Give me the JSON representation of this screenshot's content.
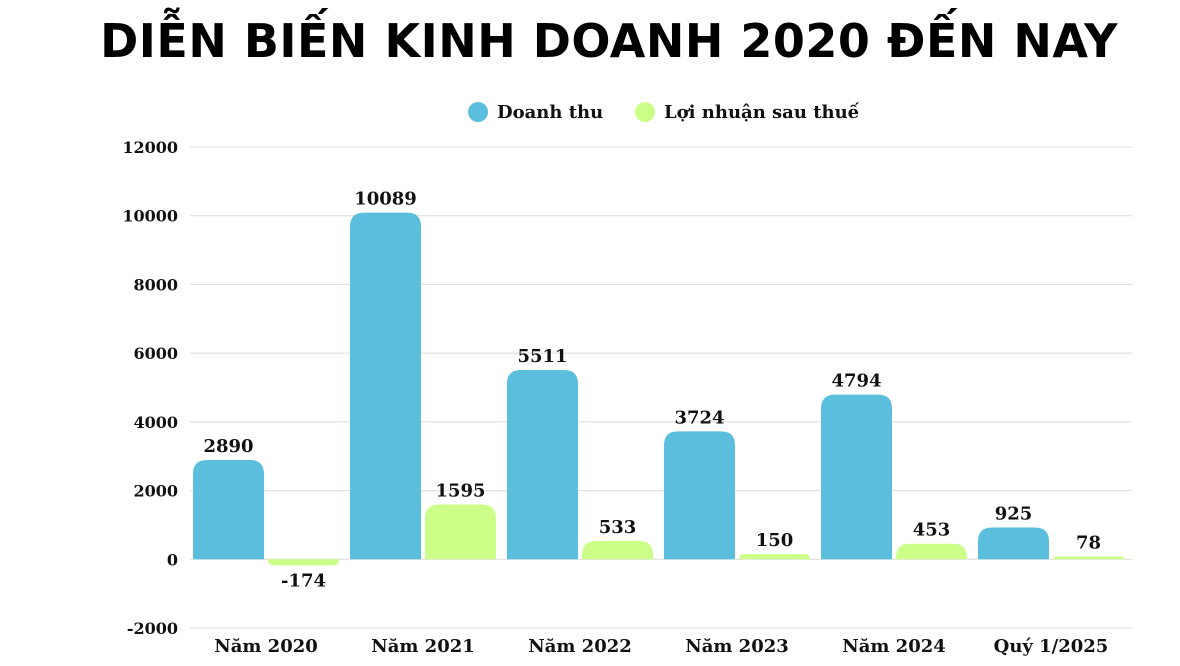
{
  "chart_data": {
    "type": "bar",
    "title": "DIỄN BIẾN KINH DOANH 2020 ĐẾN NAY",
    "categories": [
      "Năm 2020",
      "Năm 2021",
      "Năm 2022",
      "Năm 2023",
      "Năm 2024",
      "Quý 1/2025"
    ],
    "series": [
      {
        "name": "Doanh thu",
        "color": "#5bbedc",
        "values": [
          2890,
          10089,
          5511,
          3724,
          4794,
          925
        ],
        "labels": [
          "2890",
          "10089",
          "5511",
          "3724",
          "4794",
          "925"
        ]
      },
      {
        "name": "Lợi nhuận sau thuế",
        "color": "#ccff88",
        "values": [
          -174,
          1595,
          533,
          150,
          453,
          78
        ],
        "labels": [
          "-174",
          "1595",
          "533",
          "150",
          "453",
          "78"
        ]
      }
    ],
    "ylim": [
      -2000,
      12000
    ],
    "yticks": [
      "-2000",
      "0",
      "2000",
      "4000",
      "6000",
      "8000",
      "10000",
      "12000"
    ],
    "grid": true,
    "legend_position": "top"
  }
}
